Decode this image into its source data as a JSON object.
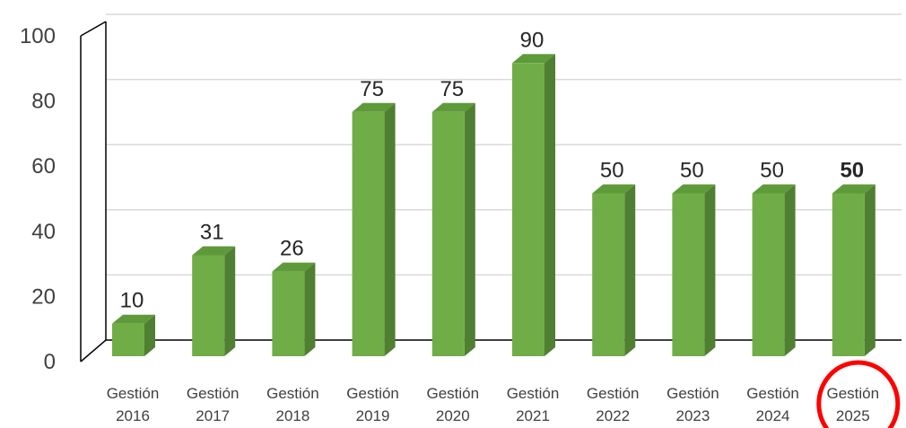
{
  "chart_data": {
    "type": "bar",
    "categories": [
      [
        "Gestión",
        "2016"
      ],
      [
        "Gestión",
        "2017"
      ],
      [
        "Gestión",
        "2018"
      ],
      [
        "Gestión",
        "2019"
      ],
      [
        "Gestión",
        "2020"
      ],
      [
        "Gestión",
        "2021"
      ],
      [
        "Gestión",
        "2022"
      ],
      [
        "Gestión",
        "2023"
      ],
      [
        "Gestión",
        "2024"
      ],
      [
        "Gestión",
        "2025"
      ]
    ],
    "values": [
      10,
      31,
      26,
      75,
      75,
      90,
      50,
      50,
      50,
      50
    ],
    "data_labels": [
      "10",
      "31",
      "26",
      "75",
      "75",
      "90",
      "50",
      "50",
      "50",
      "50"
    ],
    "emphasized_label_index": 9,
    "highlighted_category_index": 9,
    "title": "",
    "xlabel": "",
    "ylabel": "",
    "ylim": [
      0,
      100
    ],
    "yticks": [
      0,
      20,
      40,
      60,
      80,
      100
    ],
    "grid": true,
    "legend": "none",
    "style": "3d-column",
    "colors": {
      "bar_front": "#70ad47",
      "bar_side": "#507e32",
      "bar_top": "#5e9a3a",
      "gridline": "#d9d9d9",
      "axis": "#000000",
      "highlight_circle": "#ff0000"
    }
  }
}
